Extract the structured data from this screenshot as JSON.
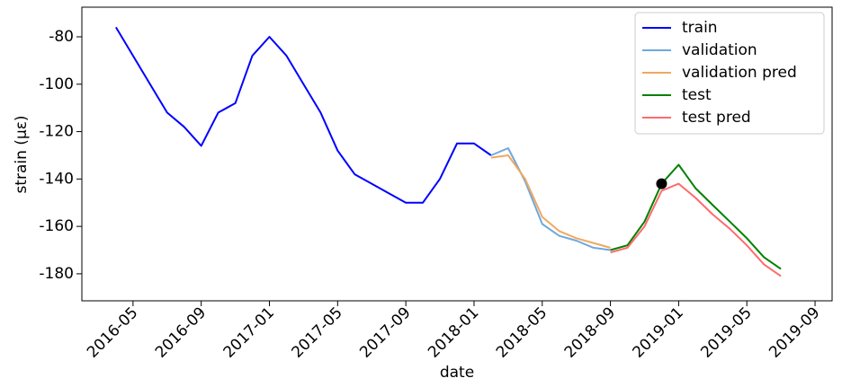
{
  "chart_data": {
    "type": "line",
    "xlabel": "date",
    "ylabel": "strain (με)",
    "xlim": [
      "2016-02",
      "2019-10"
    ],
    "xticks": [
      "2016-05",
      "2016-09",
      "2017-01",
      "2017-05",
      "2017-09",
      "2018-01",
      "2018-05",
      "2018-09",
      "2019-01",
      "2019-05",
      "2019-09"
    ],
    "ylim": [
      -191.4,
      -67.5
    ],
    "yticks": [
      -180,
      -160,
      -140,
      -120,
      -100,
      -80
    ],
    "legend": "upper right",
    "series": [
      {
        "name": "train",
        "color": "#0000ff",
        "x": [
          "2016-04",
          "2016-05",
          "2016-06",
          "2016-07",
          "2016-08",
          "2016-09",
          "2016-10",
          "2016-11",
          "2016-12",
          "2017-01",
          "2017-02",
          "2017-03",
          "2017-04",
          "2017-05",
          "2017-06",
          "2017-07",
          "2017-08",
          "2017-09",
          "2017-10",
          "2017-11",
          "2017-12",
          "2018-01",
          "2018-02"
        ],
        "values": [
          -76,
          -88,
          -100,
          -112,
          -118,
          -126,
          -112,
          -108,
          -88,
          -80,
          -88,
          -100,
          -112,
          -128,
          -138,
          -142,
          -146,
          -150,
          -150,
          -140,
          -125,
          -125,
          -130
        ]
      },
      {
        "name": "validation",
        "color": "#6fa8dc",
        "x": [
          "2018-02",
          "2018-03",
          "2018-04",
          "2018-05",
          "2018-06",
          "2018-07",
          "2018-08",
          "2018-09"
        ],
        "values": [
          -130,
          -127,
          -141,
          -159,
          -164,
          -166,
          -169,
          -170
        ]
      },
      {
        "name": "validation pred",
        "color": "#f0a860",
        "x": [
          "2018-02",
          "2018-03",
          "2018-04",
          "2018-05",
          "2018-06",
          "2018-07",
          "2018-08",
          "2018-09"
        ],
        "values": [
          -131,
          -130,
          -140,
          -156,
          -162,
          -165,
          -167,
          -169
        ]
      },
      {
        "name": "test",
        "color": "#008000",
        "x": [
          "2018-09",
          "2018-10",
          "2018-11",
          "2018-12",
          "2019-01",
          "2019-02",
          "2019-03",
          "2019-04",
          "2019-05",
          "2019-06",
          "2019-07"
        ],
        "values": [
          -170,
          -168,
          -158,
          -142,
          -134,
          -144,
          -151,
          -158,
          -165,
          -173,
          -178
        ]
      },
      {
        "name": "test pred",
        "color": "#ff6b6b",
        "x": [
          "2018-09",
          "2018-10",
          "2018-11",
          "2018-12",
          "2019-01",
          "2019-02",
          "2019-03",
          "2019-04",
          "2019-05",
          "2019-06",
          "2019-07"
        ],
        "values": [
          -171,
          -169,
          -160,
          -145,
          -142,
          -148,
          -155,
          -161,
          -168,
          -176,
          -181
        ]
      }
    ],
    "highlight": {
      "x": "2018-12",
      "value": -142,
      "color": "#000000"
    }
  }
}
